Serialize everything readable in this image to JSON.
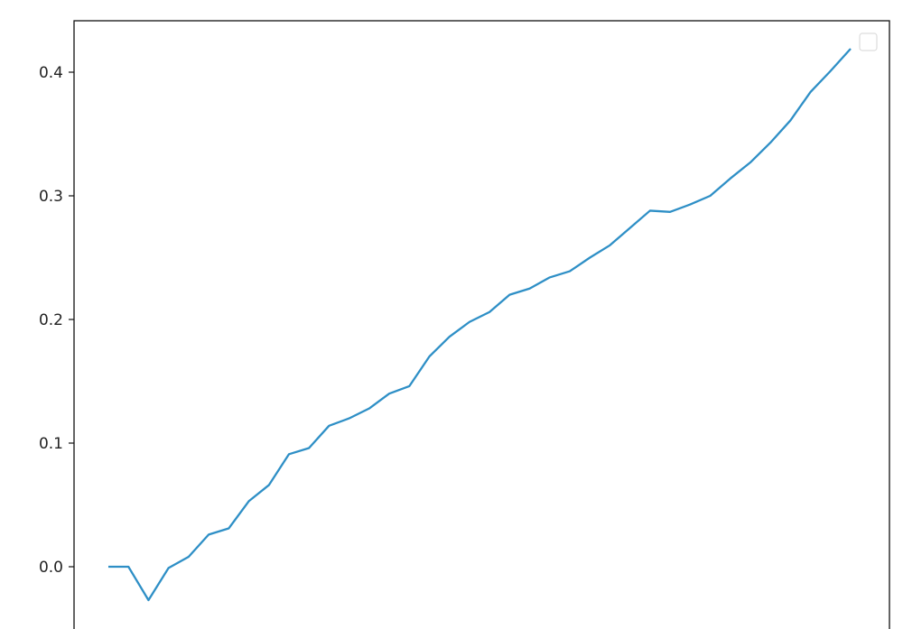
{
  "chart_data": {
    "type": "line",
    "title": "",
    "xlabel": "",
    "ylabel": "",
    "ylim": [
      -0.048,
      0.42
    ],
    "grid": false,
    "legend": {
      "placement": "top-right",
      "entries": []
    },
    "yticks": [
      {
        "value": 0.0,
        "label": "0.0"
      },
      {
        "value": 0.1,
        "label": "0.1"
      },
      {
        "value": 0.2,
        "label": "0.2"
      },
      {
        "value": 0.3,
        "label": "0.3"
      },
      {
        "value": 0.4,
        "label": "0.4"
      }
    ],
    "series": [
      {
        "color": "#2e8fc6",
        "x": [
          0,
          1,
          2,
          3,
          4,
          5,
          6,
          7,
          8,
          9,
          10,
          11,
          12,
          13,
          14,
          15,
          16,
          17,
          18,
          19,
          20,
          21,
          22,
          23,
          24,
          25,
          26,
          27,
          28,
          29,
          30,
          31,
          32,
          33,
          34,
          35,
          36,
          37
        ],
        "values": [
          0.0,
          0.0,
          -0.027,
          -0.001,
          0.008,
          0.026,
          0.031,
          0.053,
          0.066,
          0.091,
          0.096,
          0.114,
          0.12,
          0.128,
          0.14,
          0.146,
          0.17,
          0.186,
          0.198,
          0.206,
          0.22,
          0.225,
          0.234,
          0.239,
          0.25,
          0.26,
          0.274,
          0.288,
          0.287,
          0.293,
          0.3,
          0.314,
          0.327,
          0.343,
          0.361,
          0.384,
          0.401,
          0.419
        ]
      }
    ]
  }
}
